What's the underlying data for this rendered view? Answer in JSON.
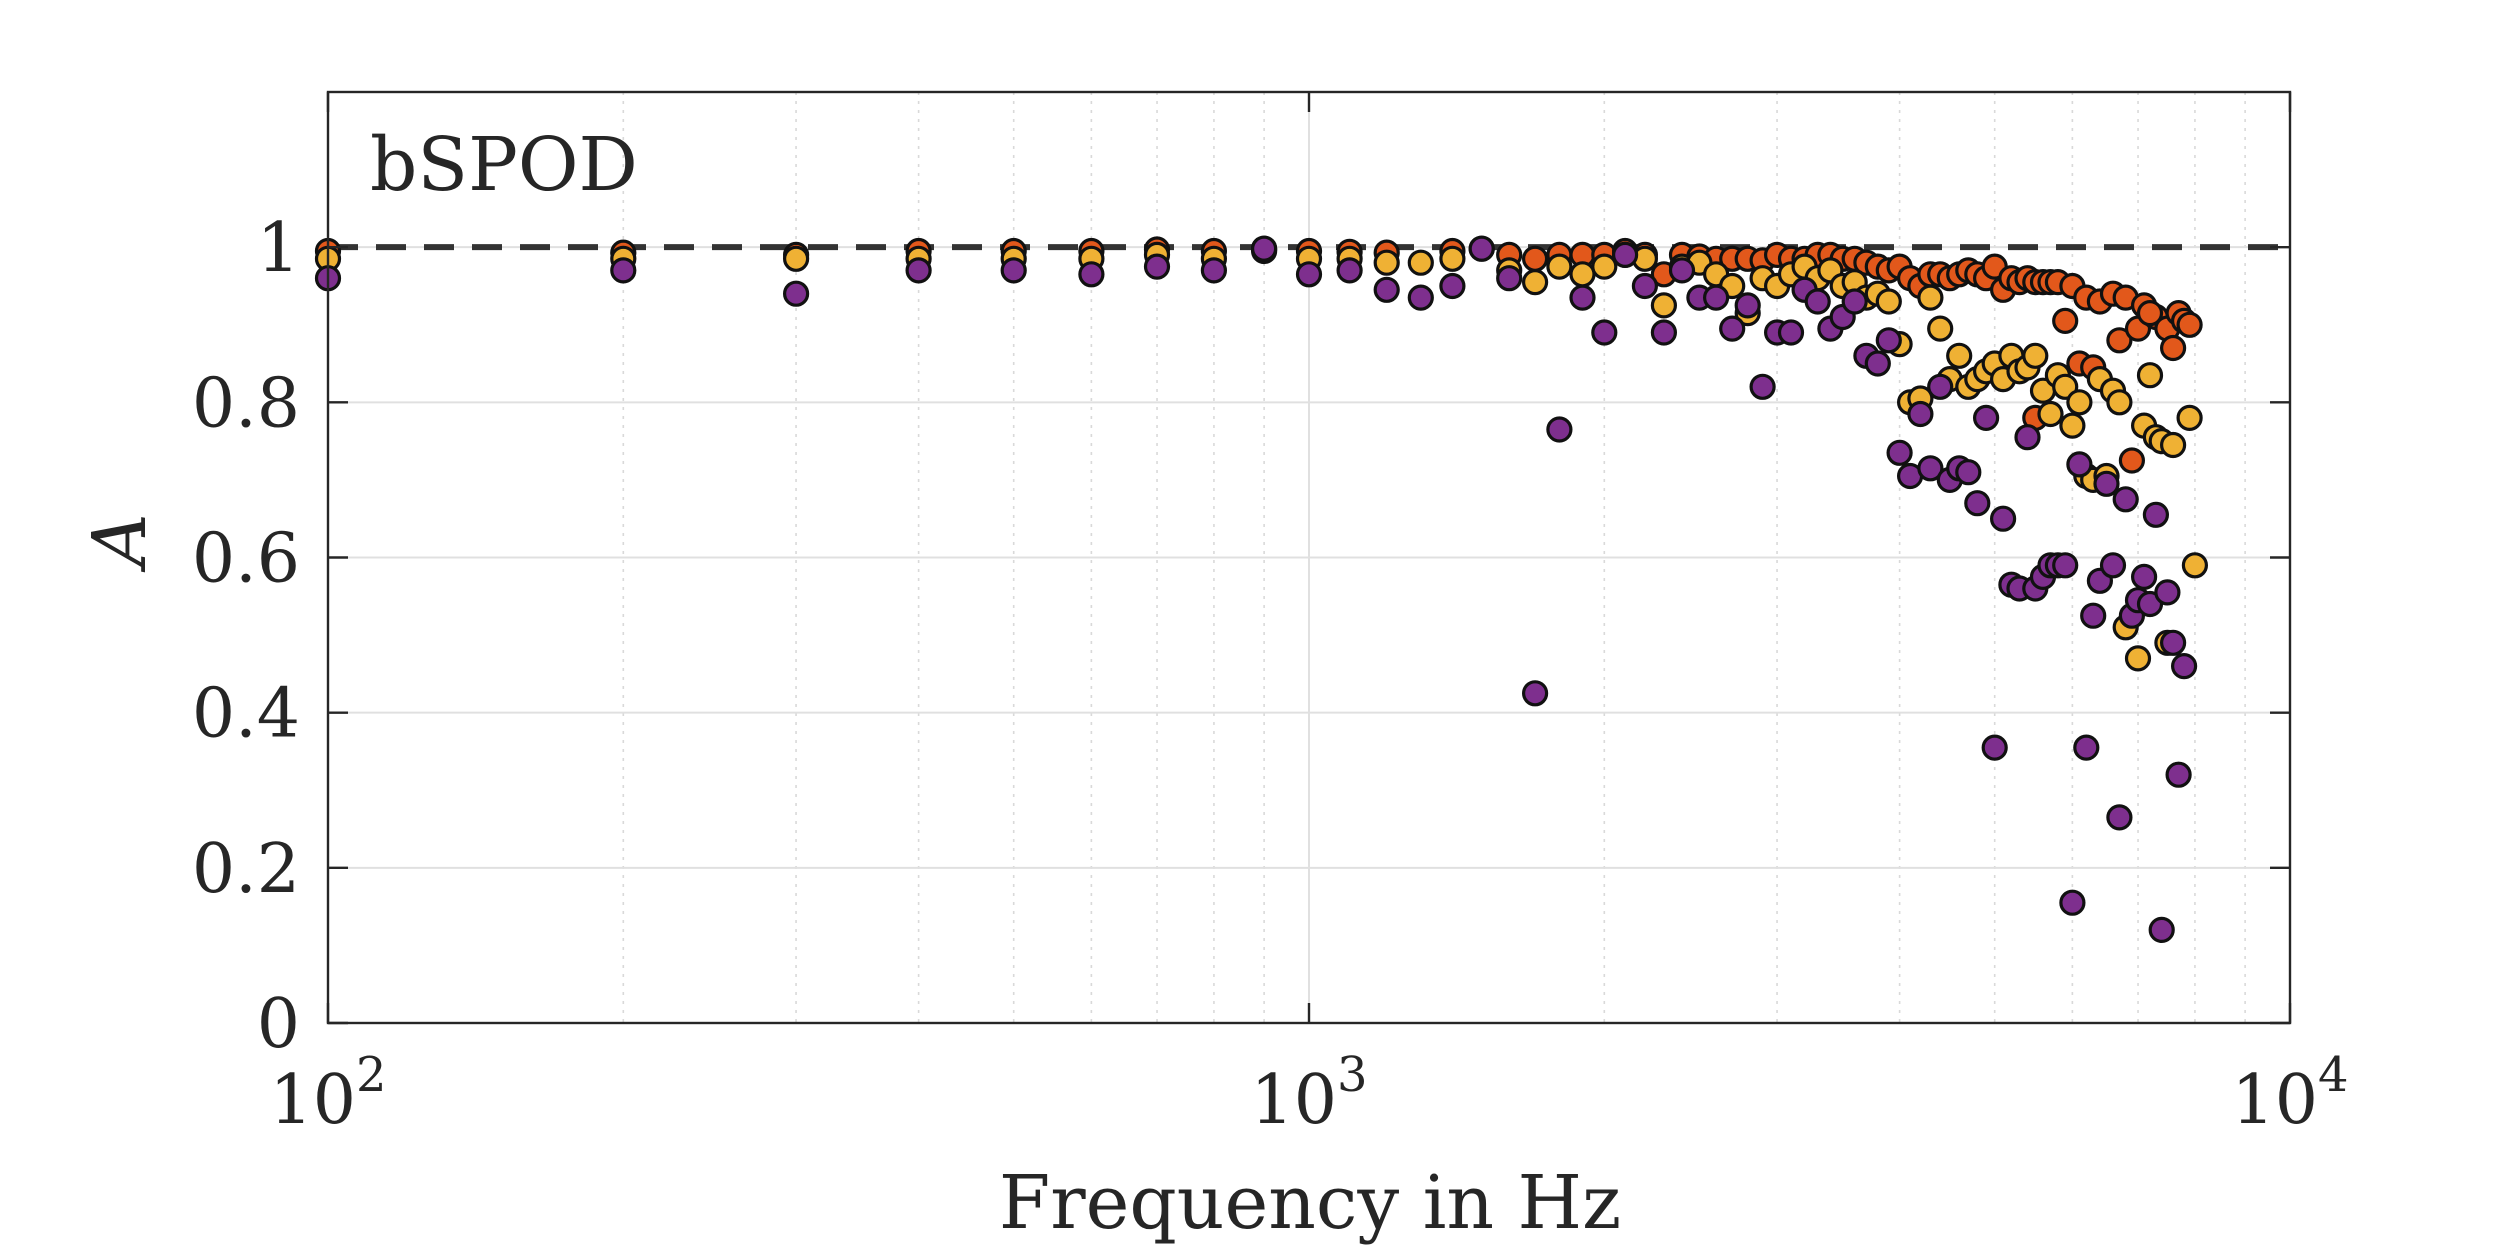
{
  "chart_data": {
    "type": "scatter",
    "title": "",
    "annotation": "bSPOD",
    "xlabel": "Frequency in Hz",
    "ylabel": "A",
    "xscale": "log",
    "xlim": [
      100,
      10000
    ],
    "ylim": [
      0,
      1.2
    ],
    "xticks": [
      100,
      1000,
      10000
    ],
    "xtick_labels": [
      {
        "base": "10",
        "exp": "2"
      },
      {
        "base": "10",
        "exp": "3"
      },
      {
        "base": "10",
        "exp": "4"
      }
    ],
    "yticks": [
      0,
      0.2,
      0.4,
      0.6,
      0.8,
      1
    ],
    "ytick_labels": [
      "0",
      "0.2",
      "0.4",
      "0.6",
      "0.8",
      "1"
    ],
    "grid": true,
    "reference_line": {
      "y": 1,
      "style": "dashed",
      "color": "#333333"
    },
    "legend": "none",
    "series": [
      {
        "color": "#e2581b",
        "points": [
          [
            100,
            0.995
          ],
          [
            200,
            0.993
          ],
          [
            300,
            0.99
          ],
          [
            400,
            0.995
          ],
          [
            500,
            0.995
          ],
          [
            600,
            0.995
          ],
          [
            700,
            0.997
          ],
          [
            800,
            0.995
          ],
          [
            900,
            0.998
          ],
          [
            1000,
            0.995
          ],
          [
            1100,
            0.994
          ],
          [
            1200,
            0.993
          ],
          [
            1400,
            0.995
          ],
          [
            1500,
            0.998
          ],
          [
            1600,
            0.99
          ],
          [
            1700,
            0.985
          ],
          [
            1800,
            0.99
          ],
          [
            1900,
            0.99
          ],
          [
            2000,
            0.99
          ],
          [
            2100,
            0.995
          ],
          [
            2200,
            0.99
          ],
          [
            2300,
            0.965
          ],
          [
            2400,
            0.99
          ],
          [
            2500,
            0.988
          ],
          [
            2600,
            0.985
          ],
          [
            2700,
            0.985
          ],
          [
            2800,
            0.985
          ],
          [
            2900,
            0.983
          ],
          [
            3000,
            0.99
          ],
          [
            3100,
            0.985
          ],
          [
            3200,
            0.985
          ],
          [
            3300,
            0.99
          ],
          [
            3400,
            0.99
          ],
          [
            3500,
            0.985
          ],
          [
            3600,
            0.985
          ],
          [
            3700,
            0.98
          ],
          [
            3800,
            0.975
          ],
          [
            3900,
            0.97
          ],
          [
            4000,
            0.975
          ],
          [
            4100,
            0.96
          ],
          [
            4200,
            0.95
          ],
          [
            4300,
            0.965
          ],
          [
            4400,
            0.965
          ],
          [
            4500,
            0.96
          ],
          [
            4600,
            0.965
          ],
          [
            4700,
            0.97
          ],
          [
            4800,
            0.965
          ],
          [
            4900,
            0.96
          ],
          [
            5000,
            0.975
          ],
          [
            5100,
            0.945
          ],
          [
            5200,
            0.96
          ],
          [
            5300,
            0.955
          ],
          [
            5400,
            0.96
          ],
          [
            5500,
            0.955
          ],
          [
            5600,
            0.955
          ],
          [
            5700,
            0.955
          ],
          [
            5800,
            0.955
          ],
          [
            5900,
            0.905
          ],
          [
            6000,
            0.95
          ],
          [
            6100,
            0.85
          ],
          [
            6200,
            0.935
          ],
          [
            6300,
            0.845
          ],
          [
            6400,
            0.93
          ],
          [
            6600,
            0.94
          ],
          [
            6700,
            0.88
          ],
          [
            6800,
            0.935
          ],
          [
            7000,
            0.895
          ],
          [
            7100,
            0.925
          ],
          [
            7300,
            0.91
          ],
          [
            7500,
            0.895
          ],
          [
            7600,
            0.87
          ],
          [
            7700,
            0.915
          ],
          [
            7800,
            0.905
          ],
          [
            7900,
            0.9
          ],
          [
            5500,
            0.78
          ],
          [
            6900,
            0.725
          ],
          [
            7200,
            0.915
          ]
        ]
      },
      {
        "color": "#efb134",
        "points": [
          [
            100,
            0.985
          ],
          [
            200,
            0.985
          ],
          [
            300,
            0.985
          ],
          [
            400,
            0.985
          ],
          [
            500,
            0.985
          ],
          [
            600,
            0.985
          ],
          [
            700,
            0.99
          ],
          [
            800,
            0.985
          ],
          [
            900,
            0.995
          ],
          [
            1000,
            0.985
          ],
          [
            1100,
            0.985
          ],
          [
            1200,
            0.98
          ],
          [
            1300,
            0.98
          ],
          [
            1400,
            0.985
          ],
          [
            1600,
            0.97
          ],
          [
            1700,
            0.955
          ],
          [
            1800,
            0.975
          ],
          [
            1900,
            0.965
          ],
          [
            2000,
            0.975
          ],
          [
            2100,
            0.99
          ],
          [
            2200,
            0.985
          ],
          [
            2300,
            0.925
          ],
          [
            2400,
            0.975
          ],
          [
            2500,
            0.98
          ],
          [
            2600,
            0.965
          ],
          [
            2700,
            0.95
          ],
          [
            2800,
            0.915
          ],
          [
            2900,
            0.96
          ],
          [
            3000,
            0.95
          ],
          [
            3100,
            0.965
          ],
          [
            3200,
            0.975
          ],
          [
            3300,
            0.96
          ],
          [
            3400,
            0.97
          ],
          [
            3500,
            0.95
          ],
          [
            3600,
            0.955
          ],
          [
            3700,
            0.935
          ],
          [
            3800,
            0.94
          ],
          [
            3900,
            0.93
          ],
          [
            4000,
            0.875
          ],
          [
            4100,
            0.8
          ],
          [
            4200,
            0.805
          ],
          [
            4300,
            0.935
          ],
          [
            4400,
            0.895
          ],
          [
            4500,
            0.83
          ],
          [
            4600,
            0.86
          ],
          [
            4700,
            0.82
          ],
          [
            4800,
            0.83
          ],
          [
            4900,
            0.84
          ],
          [
            5000,
            0.85
          ],
          [
            5100,
            0.83
          ],
          [
            5200,
            0.86
          ],
          [
            5300,
            0.84
          ],
          [
            5400,
            0.845
          ],
          [
            5500,
            0.86
          ],
          [
            5600,
            0.815
          ],
          [
            5700,
            0.785
          ],
          [
            5800,
            0.835
          ],
          [
            5900,
            0.82
          ],
          [
            6000,
            0.77
          ],
          [
            6100,
            0.8
          ],
          [
            6200,
            0.705
          ],
          [
            6300,
            0.7
          ],
          [
            6400,
            0.83
          ],
          [
            6500,
            0.705
          ],
          [
            6600,
            0.815
          ],
          [
            6700,
            0.8
          ],
          [
            6800,
            0.51
          ],
          [
            7000,
            0.47
          ],
          [
            7100,
            0.77
          ],
          [
            7200,
            0.835
          ],
          [
            7300,
            0.755
          ],
          [
            7400,
            0.75
          ],
          [
            7500,
            0.49
          ],
          [
            7600,
            0.745
          ],
          [
            7900,
            0.78
          ],
          [
            8000,
            0.59
          ]
        ]
      },
      {
        "color": "#7e2f8e",
        "points": [
          [
            100,
            0.96
          ],
          [
            200,
            0.97
          ],
          [
            300,
            0.94
          ],
          [
            400,
            0.97
          ],
          [
            500,
            0.97
          ],
          [
            600,
            0.965
          ],
          [
            700,
            0.975
          ],
          [
            800,
            0.97
          ],
          [
            900,
            0.998
          ],
          [
            1000,
            0.965
          ],
          [
            1100,
            0.97
          ],
          [
            1200,
            0.945
          ],
          [
            1300,
            0.935
          ],
          [
            1400,
            0.95
          ],
          [
            1500,
            0.998
          ],
          [
            1600,
            0.96
          ],
          [
            1700,
            0.425
          ],
          [
            1800,
            0.765
          ],
          [
            1900,
            0.935
          ],
          [
            2000,
            0.89
          ],
          [
            2100,
            0.99
          ],
          [
            2200,
            0.95
          ],
          [
            2300,
            0.89
          ],
          [
            2400,
            0.97
          ],
          [
            2500,
            0.935
          ],
          [
            2600,
            0.935
          ],
          [
            2700,
            0.895
          ],
          [
            2800,
            0.925
          ],
          [
            2900,
            0.82
          ],
          [
            3000,
            0.89
          ],
          [
            3100,
            0.89
          ],
          [
            3200,
            0.945
          ],
          [
            3300,
            0.93
          ],
          [
            3400,
            0.895
          ],
          [
            3500,
            0.91
          ],
          [
            3600,
            0.93
          ],
          [
            3700,
            0.86
          ],
          [
            3800,
            0.85
          ],
          [
            3900,
            0.88
          ],
          [
            4000,
            0.735
          ],
          [
            4100,
            0.705
          ],
          [
            4200,
            0.785
          ],
          [
            4300,
            0.715
          ],
          [
            4400,
            0.82
          ],
          [
            4500,
            0.7
          ],
          [
            4600,
            0.715
          ],
          [
            4700,
            0.71
          ],
          [
            4800,
            0.67
          ],
          [
            4900,
            0.78
          ],
          [
            5000,
            0.355
          ],
          [
            5100,
            0.65
          ],
          [
            5200,
            0.565
          ],
          [
            5300,
            0.56
          ],
          [
            5400,
            0.755
          ],
          [
            5500,
            0.56
          ],
          [
            5600,
            0.575
          ],
          [
            5700,
            0.59
          ],
          [
            5800,
            0.59
          ],
          [
            5900,
            0.59
          ],
          [
            6000,
            0.155
          ],
          [
            6100,
            0.72
          ],
          [
            6200,
            0.355
          ],
          [
            6300,
            0.525
          ],
          [
            6400,
            0.57
          ],
          [
            6500,
            0.695
          ],
          [
            6600,
            0.59
          ],
          [
            6700,
            0.265
          ],
          [
            6800,
            0.675
          ],
          [
            6900,
            0.525
          ],
          [
            7000,
            0.545
          ],
          [
            7100,
            0.575
          ],
          [
            7200,
            0.54
          ],
          [
            7300,
            0.655
          ],
          [
            7400,
            0.12
          ],
          [
            7500,
            0.555
          ],
          [
            7600,
            0.49
          ],
          [
            7700,
            0.32
          ],
          [
            7800,
            0.46
          ]
        ]
      }
    ]
  }
}
